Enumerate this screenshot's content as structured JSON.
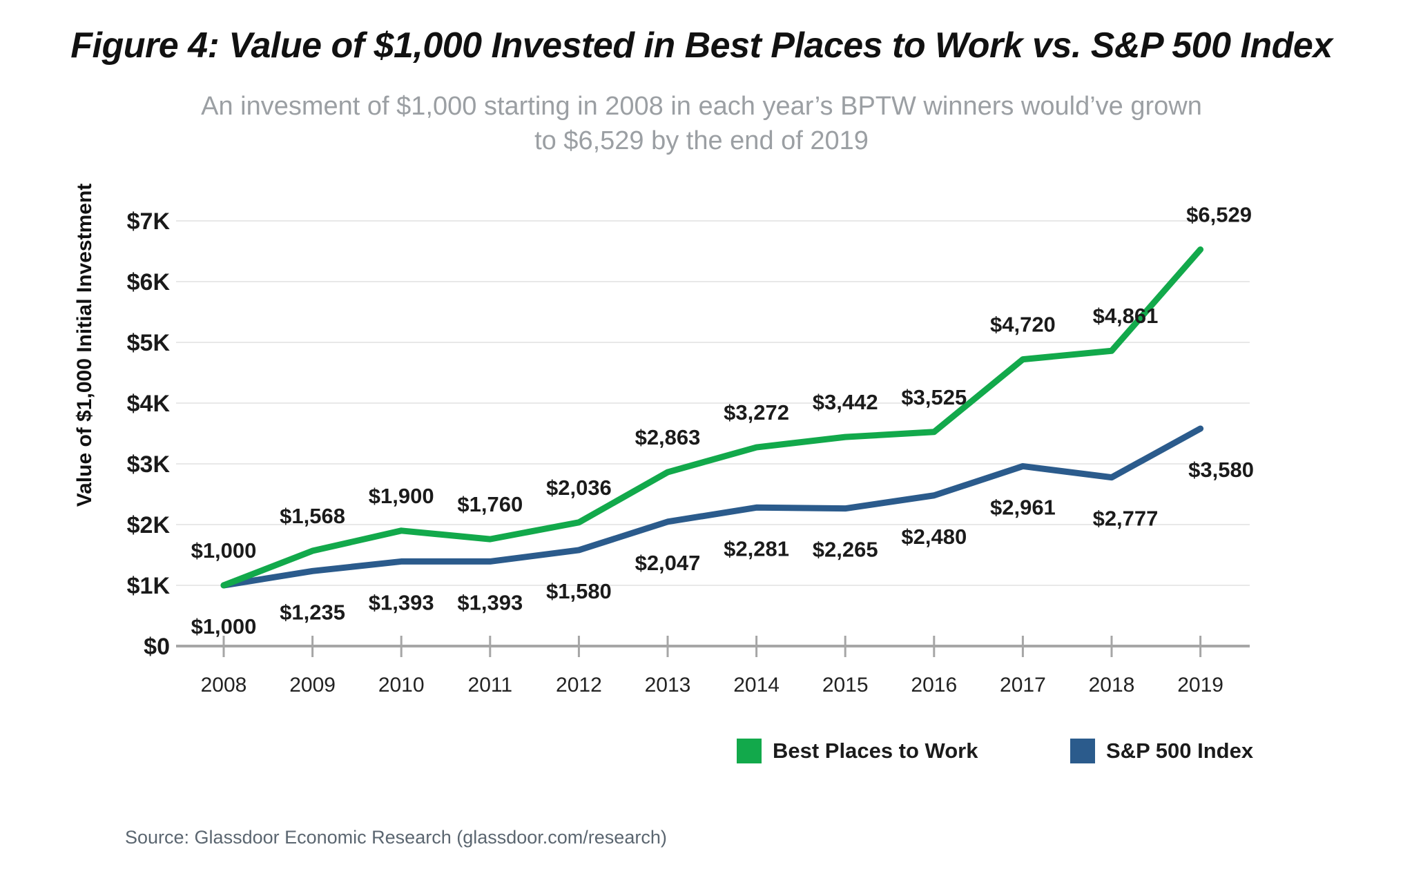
{
  "title": "Figure 4: Value of $1,000 Invested in Best Places to Work vs. S&P 500 Index",
  "subtitle": {
    "line1": "An invesment of $1,000 starting in 2008 in each year’s BPTW winners would’ve grown",
    "line2": "to $6,529 by the end of 2019"
  },
  "source": "Source: Glassdoor Economic Research (glassdoor.com/research)",
  "legend": {
    "items": [
      {
        "label": "Best Places to Work",
        "color": "#12a94b"
      },
      {
        "label": "S&P 500 Index",
        "color": "#2b5b8c"
      }
    ]
  },
  "chart_data": {
    "type": "line",
    "title": "Figure 4: Value of $1,000 Invested in Best Places to Work vs. S&P 500 Index",
    "x": [
      2008,
      2009,
      2010,
      2011,
      2012,
      2013,
      2014,
      2015,
      2016,
      2017,
      2018,
      2019
    ],
    "xlabel": "",
    "ylabel": "Value of $1,000 Initial Investment",
    "ylim": [
      0,
      7000
    ],
    "ytick_labels": [
      "$0",
      "$1K",
      "$2K",
      "$3K",
      "$4K",
      "$5K",
      "$6K",
      "$7K"
    ],
    "grid": true,
    "legend_position": "bottom",
    "series": [
      {
        "name": "Best Places to Work",
        "color": "#12a94b",
        "values": [
          1000,
          1568,
          1900,
          1760,
          2036,
          2863,
          3272,
          3442,
          3525,
          4720,
          4861,
          6529
        ]
      },
      {
        "name": "S&P 500 Index",
        "color": "#2b5b8c",
        "values": [
          1000,
          1235,
          1393,
          1393,
          1580,
          2047,
          2281,
          2265,
          2480,
          2961,
          2777,
          3580
        ]
      }
    ],
    "colors": {
      "gridline": "#e8e8e8",
      "axis": "#a6a6a6",
      "data_label": "#1b1b1b"
    }
  }
}
